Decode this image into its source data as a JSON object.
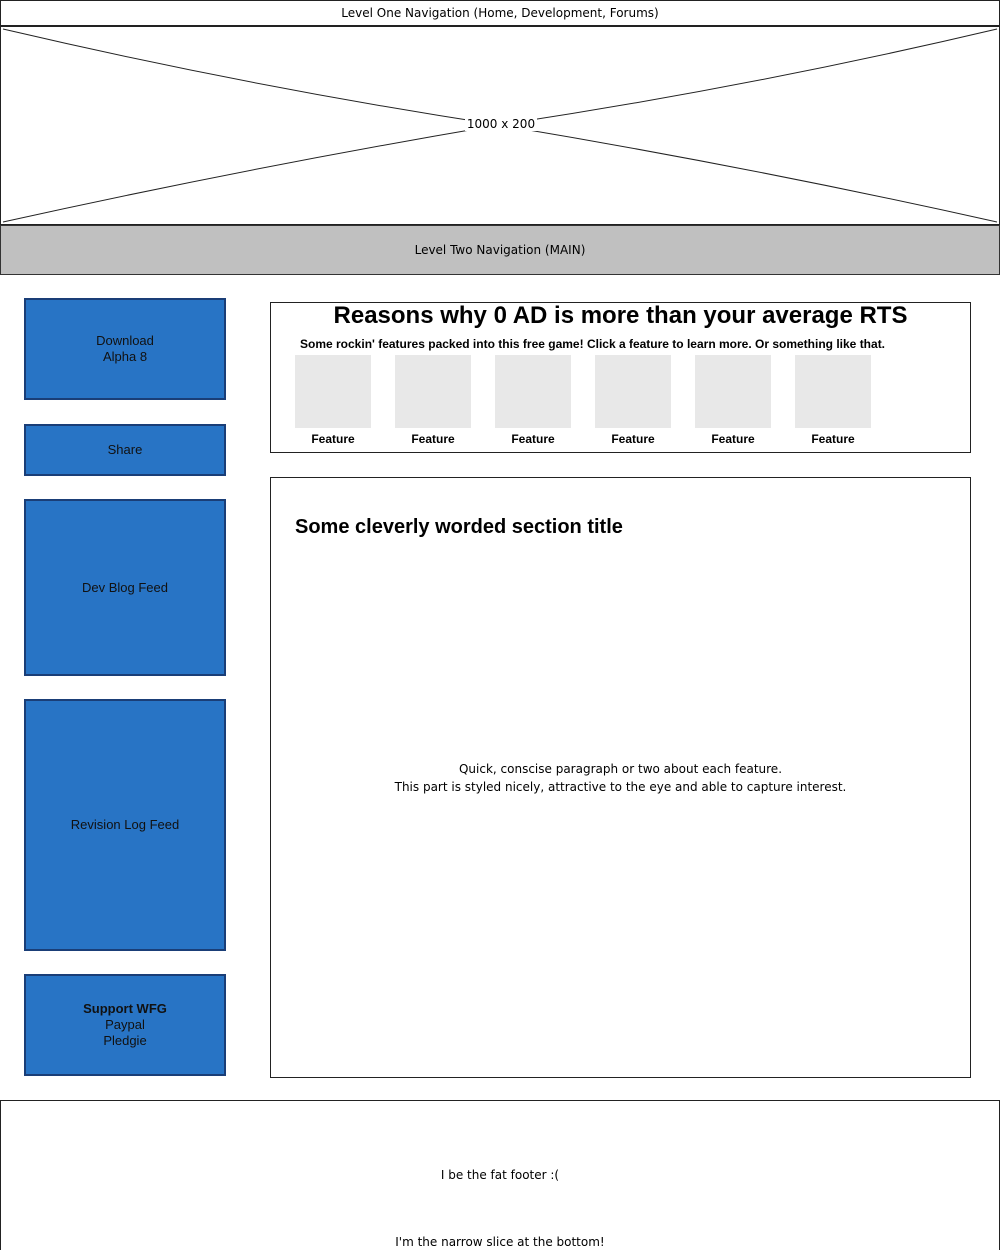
{
  "nav1": {
    "label": "Level One Navigation (Home, Development, Forums)"
  },
  "banner": {
    "label": "1000 x 200"
  },
  "nav2": {
    "label": "Level Two Navigation (MAIN)"
  },
  "sidebar": {
    "download": {
      "line1": "Download",
      "line2": "Alpha 8"
    },
    "share": {
      "label": "Share"
    },
    "devblog": {
      "label": "Dev Blog Feed"
    },
    "revlog": {
      "label": "Revision Log Feed"
    },
    "support": {
      "title": "Support WFG",
      "line1": "Paypal",
      "line2": "Pledgie"
    }
  },
  "features": {
    "title": "Reasons why 0 AD is more than your average RTS",
    "subtitle": "Some rockin' features packed into this free game! Click a feature to learn more. Or something like that.",
    "items": [
      {
        "label": "Feature"
      },
      {
        "label": "Feature"
      },
      {
        "label": "Feature"
      },
      {
        "label": "Feature"
      },
      {
        "label": "Feature"
      },
      {
        "label": "Feature"
      }
    ]
  },
  "section": {
    "title": "Some cleverly worded section title",
    "line1": "Quick, conscise paragraph or two about each feature.",
    "line2": "This part is styled nicely, attractive to the eye and able to capture interest."
  },
  "footer": {
    "fat": "I be the fat footer :(",
    "narrow": "I'm the narrow slice at the bottom!"
  },
  "colors": {
    "sidebar_box": "#2874c5",
    "sidebar_border": "#1a3e77",
    "nav2_bg": "#c0c0c0",
    "feature_thumb": "#e8e8e8"
  }
}
